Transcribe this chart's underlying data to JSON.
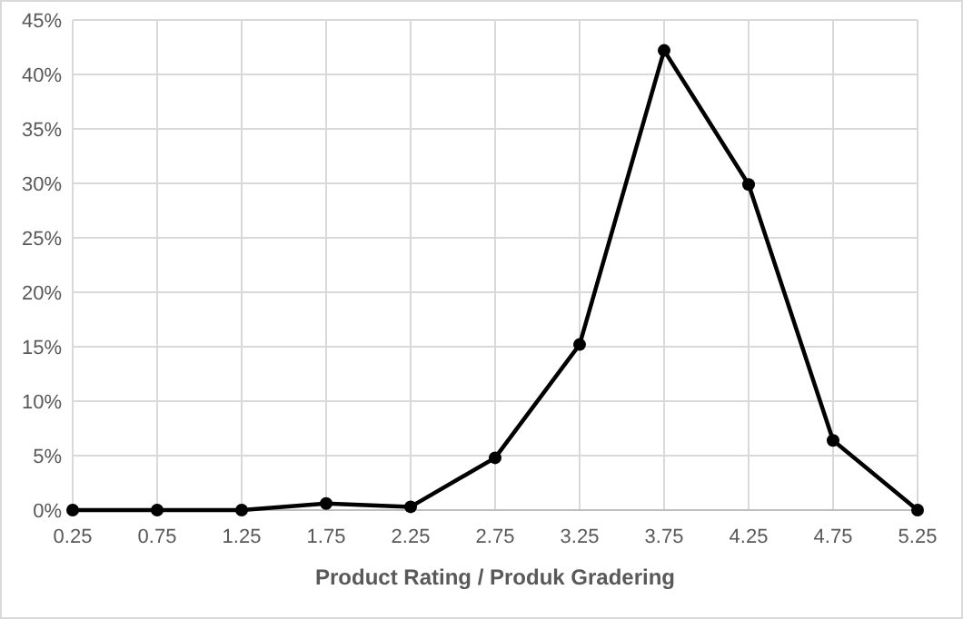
{
  "chart_data": {
    "type": "line",
    "xlabel": "Product Rating / Produk Gradering",
    "x": [
      0.25,
      0.75,
      1.25,
      1.75,
      2.25,
      2.75,
      3.25,
      3.75,
      4.25,
      4.75,
      5.25
    ],
    "series": [
      {
        "color": "#000000",
        "values": [
          0,
          0,
          0,
          0.6,
          0.3,
          4.8,
          15.2,
          42.2,
          29.9,
          6.4,
          0
        ]
      }
    ],
    "xlim": [
      0.25,
      5.25
    ],
    "xticks": [
      0.25,
      0.75,
      1.25,
      1.75,
      2.25,
      2.75,
      3.25,
      3.75,
      4.25,
      4.75,
      5.25
    ],
    "ylim": [
      0,
      45
    ],
    "yticks": [
      {
        "value": 0,
        "label": "0%"
      },
      {
        "value": 5,
        "label": "5%"
      },
      {
        "value": 10,
        "label": "10%"
      },
      {
        "value": 15,
        "label": "15%"
      },
      {
        "value": 20,
        "label": "20%"
      },
      {
        "value": 25,
        "label": "25%"
      },
      {
        "value": 30,
        "label": "30%"
      },
      {
        "value": 35,
        "label": "35%"
      },
      {
        "value": 40,
        "label": "40%"
      },
      {
        "value": 45,
        "label": "45%"
      }
    ],
    "grid": true,
    "marker": "circle",
    "line_style": "solid"
  }
}
